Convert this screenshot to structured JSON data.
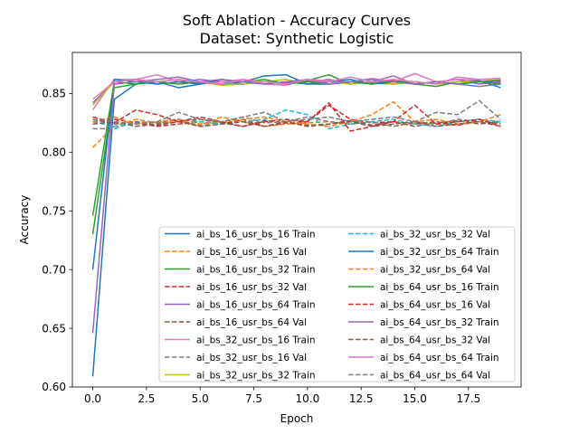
{
  "chart_data": {
    "type": "line",
    "title": "Soft Ablation - Accuracy Curves",
    "subtitle": "Dataset: Synthetic Logistic",
    "xlabel": "Epoch",
    "ylabel": "Accuracy",
    "xlim": [
      -0.95,
      19.95
    ],
    "ylim": [
      0.6,
      0.885
    ],
    "xticks": [
      0.0,
      2.5,
      5.0,
      7.5,
      10.0,
      12.5,
      15.0,
      17.5
    ],
    "xtick_labels": [
      "0.0",
      "2.5",
      "5.0",
      "7.5",
      "10.0",
      "12.5",
      "15.0",
      "17.5"
    ],
    "yticks": [
      0.6,
      0.65,
      0.7,
      0.75,
      0.8,
      0.85
    ],
    "ytick_labels": [
      "0.60",
      "0.65",
      "0.70",
      "0.75",
      "0.80",
      "0.85"
    ],
    "grid": false,
    "legend_position": "lower-right",
    "legend_columns": 2,
    "x": [
      0,
      1,
      2,
      3,
      4,
      5,
      6,
      7,
      8,
      9,
      10,
      11,
      12,
      13,
      14,
      15,
      16,
      17,
      18,
      19
    ],
    "series": [
      {
        "name": "ai_bs_16_usr_bs_16 Train",
        "color": "#1f77b4",
        "dash": "solid",
        "values": [
          0.609,
          0.845,
          0.858,
          0.86,
          0.855,
          0.858,
          0.86,
          0.86,
          0.865,
          0.866,
          0.858,
          0.858,
          0.86,
          0.859,
          0.858,
          0.86,
          0.858,
          0.86,
          0.861,
          0.855
        ]
      },
      {
        "name": "ai_bs_16_usr_bs_16 Val",
        "color": "#ff7f0e",
        "dash": "dashed",
        "values": [
          0.804,
          0.822,
          0.828,
          0.825,
          0.826,
          0.823,
          0.83,
          0.826,
          0.822,
          0.824,
          0.825,
          0.826,
          0.824,
          0.826,
          0.822,
          0.825,
          0.824,
          0.823,
          0.826,
          0.826
        ]
      },
      {
        "name": "ai_bs_16_usr_bs_32 Train",
        "color": "#2ca02c",
        "dash": "solid",
        "values": [
          0.73,
          0.855,
          0.858,
          0.86,
          0.862,
          0.859,
          0.86,
          0.858,
          0.86,
          0.858,
          0.861,
          0.866,
          0.858,
          0.86,
          0.861,
          0.858,
          0.856,
          0.86,
          0.86,
          0.859
        ]
      },
      {
        "name": "ai_bs_16_usr_bs_32 Val",
        "color": "#d62728",
        "dash": "dashed",
        "values": [
          0.826,
          0.828,
          0.825,
          0.822,
          0.824,
          0.826,
          0.824,
          0.828,
          0.822,
          0.825,
          0.826,
          0.84,
          0.828,
          0.825,
          0.826,
          0.824,
          0.826,
          0.823,
          0.828,
          0.824
        ]
      },
      {
        "name": "ai_bs_16_usr_bs_64 Train",
        "color": "#9467bd",
        "dash": "solid",
        "values": [
          0.842,
          0.86,
          0.862,
          0.858,
          0.86,
          0.862,
          0.86,
          0.858,
          0.86,
          0.859,
          0.86,
          0.862,
          0.858,
          0.86,
          0.865,
          0.858,
          0.86,
          0.862,
          0.858,
          0.86
        ]
      },
      {
        "name": "ai_bs_16_usr_bs_64 Val",
        "color": "#8c564b",
        "dash": "dashed",
        "values": [
          0.828,
          0.824,
          0.826,
          0.823,
          0.826,
          0.828,
          0.825,
          0.822,
          0.827,
          0.825,
          0.823,
          0.824,
          0.827,
          0.823,
          0.826,
          0.822,
          0.825,
          0.827,
          0.824,
          0.826
        ]
      },
      {
        "name": "ai_bs_32_usr_bs_16 Train",
        "color": "#e377c2",
        "dash": "solid",
        "values": [
          0.836,
          0.862,
          0.862,
          0.866,
          0.86,
          0.858,
          0.86,
          0.862,
          0.858,
          0.857,
          0.862,
          0.861,
          0.86,
          0.863,
          0.86,
          0.867,
          0.86,
          0.862,
          0.862,
          0.862
        ]
      },
      {
        "name": "ai_bs_32_usr_bs_16 Val",
        "color": "#7f7f7f",
        "dash": "dashed",
        "values": [
          0.82,
          0.82,
          0.826,
          0.825,
          0.828,
          0.822,
          0.826,
          0.83,
          0.825,
          0.826,
          0.83,
          0.826,
          0.824,
          0.826,
          0.822,
          0.826,
          0.824,
          0.828,
          0.826,
          0.826
        ]
      },
      {
        "name": "ai_bs_32_usr_bs_32 Train",
        "color": "#bcbd22",
        "dash": "solid",
        "values": [
          0.84,
          0.86,
          0.862,
          0.86,
          0.858,
          0.86,
          0.857,
          0.858,
          0.86,
          0.862,
          0.858,
          0.86,
          0.858,
          0.86,
          0.858,
          0.86,
          0.858,
          0.86,
          0.86,
          0.862
        ]
      },
      {
        "name": "ai_bs_32_usr_bs_32 Val",
        "color": "#17becf",
        "dash": "dashed",
        "values": [
          0.826,
          0.822,
          0.824,
          0.826,
          0.828,
          0.826,
          0.824,
          0.826,
          0.828,
          0.836,
          0.832,
          0.82,
          0.824,
          0.826,
          0.828,
          0.824,
          0.822,
          0.826,
          0.828,
          0.826
        ]
      },
      {
        "name": "ai_bs_32_usr_bs_64 Train",
        "color": "#1f77b4",
        "dash": "solid",
        "values": [
          0.7,
          0.862,
          0.86,
          0.858,
          0.86,
          0.858,
          0.862,
          0.86,
          0.858,
          0.86,
          0.858,
          0.86,
          0.862,
          0.858,
          0.86,
          0.858,
          0.86,
          0.858,
          0.86,
          0.861
        ]
      },
      {
        "name": "ai_bs_32_usr_bs_64 Val",
        "color": "#ff7f0e",
        "dash": "dashed",
        "values": [
          0.826,
          0.83,
          0.824,
          0.826,
          0.828,
          0.824,
          0.826,
          0.828,
          0.83,
          0.826,
          0.824,
          0.822,
          0.826,
          0.832,
          0.843,
          0.826,
          0.828,
          0.824,
          0.826,
          0.832
        ]
      },
      {
        "name": "ai_bs_64_usr_bs_16 Train",
        "color": "#2ca02c",
        "dash": "solid",
        "values": [
          0.746,
          0.86,
          0.858,
          0.86,
          0.858,
          0.86,
          0.858,
          0.86,
          0.862,
          0.858,
          0.86,
          0.858,
          0.86,
          0.858,
          0.862,
          0.858,
          0.86,
          0.858,
          0.86,
          0.858
        ]
      },
      {
        "name": "ai_bs_64_usr_bs_16 Val",
        "color": "#d62728",
        "dash": "dashed",
        "values": [
          0.83,
          0.825,
          0.836,
          0.832,
          0.826,
          0.83,
          0.826,
          0.822,
          0.826,
          0.828,
          0.826,
          0.842,
          0.818,
          0.822,
          0.826,
          0.84,
          0.824,
          0.826,
          0.828,
          0.822
        ]
      },
      {
        "name": "ai_bs_64_usr_bs_32 Train",
        "color": "#9467bd",
        "dash": "solid",
        "values": [
          0.646,
          0.858,
          0.86,
          0.862,
          0.864,
          0.86,
          0.862,
          0.86,
          0.858,
          0.86,
          0.862,
          0.858,
          0.86,
          0.862,
          0.86,
          0.858,
          0.86,
          0.858,
          0.856,
          0.858
        ]
      },
      {
        "name": "ai_bs_64_usr_bs_32 Val",
        "color": "#8c564b",
        "dash": "dashed",
        "values": [
          0.824,
          0.826,
          0.822,
          0.824,
          0.826,
          0.822,
          0.824,
          0.826,
          0.822,
          0.826,
          0.822,
          0.824,
          0.826,
          0.822,
          0.824,
          0.826,
          0.822,
          0.824,
          0.826,
          0.822
        ]
      },
      {
        "name": "ai_bs_64_usr_bs_64 Train",
        "color": "#e377c2",
        "dash": "solid",
        "values": [
          0.845,
          0.86,
          0.862,
          0.86,
          0.862,
          0.86,
          0.858,
          0.862,
          0.86,
          0.858,
          0.862,
          0.86,
          0.864,
          0.86,
          0.862,
          0.86,
          0.858,
          0.864,
          0.862,
          0.863
        ]
      },
      {
        "name": "ai_bs_64_usr_bs_64 Val",
        "color": "#7f7f7f",
        "dash": "dashed",
        "values": [
          0.828,
          0.826,
          0.824,
          0.826,
          0.834,
          0.828,
          0.826,
          0.83,
          0.834,
          0.826,
          0.828,
          0.83,
          0.826,
          0.828,
          0.83,
          0.826,
          0.834,
          0.832,
          0.844,
          0.828
        ]
      }
    ]
  }
}
